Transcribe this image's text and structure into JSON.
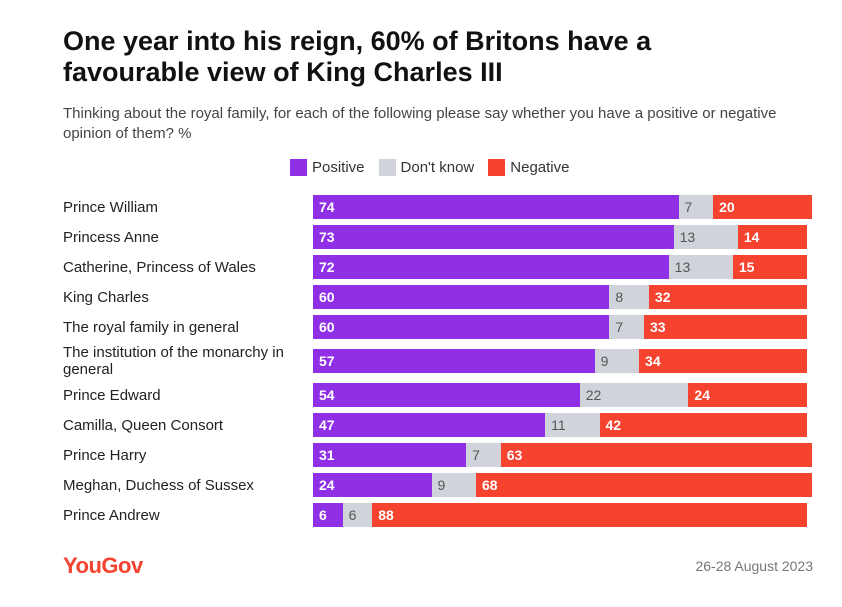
{
  "chart_data": {
    "type": "stacked-bar",
    "title": "One year into his reign, 60% of Britons have a favourable view of King Charles III",
    "subtitle": "Thinking about the royal family, for each of the following please say whether you have a positive or negative opinion of them? %",
    "categories": [
      "Prince William",
      "Princess Anne",
      "Catherine, Princess of Wales",
      "King Charles",
      "The royal family in general",
      "The institution of the monarchy in general",
      "Prince Edward",
      "Camilla, Queen Consort",
      "Prince Harry",
      "Meghan, Duchess of Sussex",
      "Prince Andrew"
    ],
    "series": [
      {
        "name": "Positive",
        "color": "#8f2fe6",
        "values": [
          74,
          73,
          72,
          60,
          60,
          57,
          54,
          47,
          31,
          24,
          6
        ]
      },
      {
        "name": "Don't know",
        "color": "#d0d3da",
        "values": [
          7,
          13,
          13,
          8,
          7,
          9,
          22,
          11,
          7,
          9,
          6
        ]
      },
      {
        "name": "Negative",
        "color": "#f5432f",
        "values": [
          20,
          14,
          15,
          32,
          33,
          34,
          24,
          42,
          63,
          68,
          88
        ]
      }
    ],
    "source": "YouGov",
    "date": "26-28 August 2023"
  }
}
